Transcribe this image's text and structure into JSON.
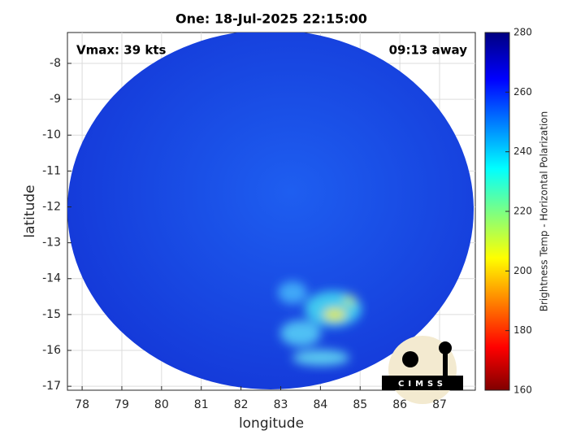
{
  "chart_data": {
    "type": "image",
    "title": "One: 18-Jul-2025 22:15:00",
    "xlabel": "longitude",
    "ylabel": "latitude",
    "xlim": [
      77.63,
      87.9
    ],
    "xticks": [
      78,
      79,
      80,
      81,
      82,
      83,
      84,
      85,
      86,
      87
    ],
    "ylim": [
      -17.11,
      -7.14
    ],
    "yticks": [
      -8,
      -9,
      -10,
      -11,
      -12,
      -13,
      -14,
      -15,
      -16,
      -17
    ],
    "grid": true,
    "annotations": [
      "Vmax: 39 kts",
      "09:13 away"
    ],
    "logo_text": "CIMSS",
    "colorbar": {
      "label": "Brightness Temp - Horizontal Polarization",
      "lim": [
        160,
        280
      ],
      "ticks": [
        160,
        180,
        200,
        220,
        240,
        260,
        280
      ]
    }
  }
}
